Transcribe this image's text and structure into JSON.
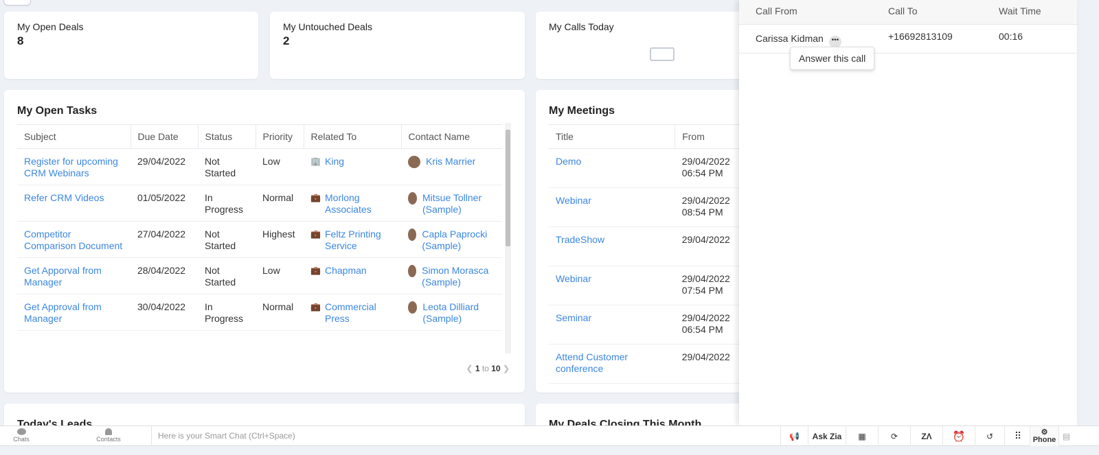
{
  "stats": [
    {
      "title": "My Open Deals",
      "value": "8"
    },
    {
      "title": "My Untouched Deals",
      "value": "2"
    },
    {
      "title": "My Calls Today",
      "value": ""
    }
  ],
  "tasks": {
    "title": "My Open Tasks",
    "columns": [
      "Subject",
      "Due Date",
      "Status",
      "Priority",
      "Related To",
      "Contact Name"
    ],
    "rows": [
      {
        "subject": "Register for upcoming CRM Webinars",
        "due": "29/04/2022",
        "status": "Not Started",
        "priority": "Low",
        "related": "King",
        "related_icon": "building-icon",
        "contact": "Kris Marrier"
      },
      {
        "subject": "Refer CRM Videos",
        "due": "01/05/2022",
        "status": "In Progress",
        "priority": "Normal",
        "related": "Morlong Associates",
        "related_icon": "deal-icon",
        "contact": "Mitsue Tollner (Sample)"
      },
      {
        "subject": "Competitor Comparison Document",
        "due": "27/04/2022",
        "status": "Not Started",
        "priority": "Highest",
        "related": "Feltz Printing Service",
        "related_icon": "deal-icon",
        "contact": "Capla Paprocki (Sample)"
      },
      {
        "subject": "Get Apporval from Manager",
        "due": "28/04/2022",
        "status": "Not Started",
        "priority": "Low",
        "related": "Chapman",
        "related_icon": "deal-icon",
        "contact": "Simon Morasca (Sample)"
      },
      {
        "subject": "Get Approval from Manager",
        "due": "30/04/2022",
        "status": "In Progress",
        "priority": "Normal",
        "related": "Commercial Press",
        "related_icon": "deal-icon",
        "contact": "Leota Dilliard (Sample)"
      }
    ],
    "pager": {
      "from": "1",
      "to_label": "to",
      "to": "10"
    }
  },
  "meetings": {
    "title": "My Meetings",
    "columns": [
      "Title",
      "From"
    ],
    "rows": [
      {
        "title": "Demo",
        "from": "29/04/2022 06:54 PM"
      },
      {
        "title": "Webinar",
        "from": "29/04/2022 08:54 PM"
      },
      {
        "title": "TradeShow",
        "from": "29/04/2022"
      },
      {
        "title": "Webinar",
        "from": "29/04/2022 07:54 PM"
      },
      {
        "title": "Seminar",
        "from": "29/04/2022 06:54 PM"
      },
      {
        "title": "Attend Customer conference",
        "from": "29/04/2022"
      }
    ]
  },
  "bottom_cards": [
    "Today's Leads",
    "My Deals Closing This Month"
  ],
  "call_panel": {
    "columns": [
      "Call From",
      "Call To",
      "Wait Time"
    ],
    "row": {
      "from": "Carissa Kidman",
      "to": "+16692813109",
      "wait": "00:16"
    },
    "tooltip": "Answer this call"
  },
  "bottombar": {
    "chats": "Chats",
    "contacts": "Contacts",
    "smart_chat_placeholder": "Here is your Smart Chat (Ctrl+Space)",
    "ask_zia": "Ask Zia",
    "phone": "Phone"
  }
}
